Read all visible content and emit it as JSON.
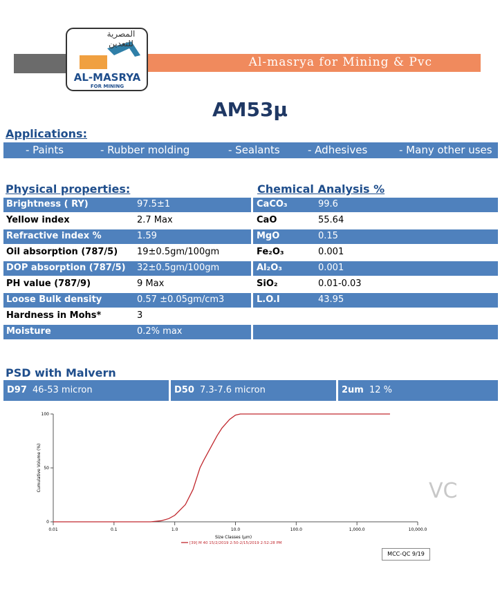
{
  "header": {
    "logo_arabic_1": "المصرية",
    "logo_arabic_2": "للتعدين",
    "logo_name": "AL-MASRYA",
    "logo_sub": "FOR MINING",
    "company": "Al-masrya for Mining & Pvc"
  },
  "title": "AM53µ",
  "applications": {
    "heading": "Applications:",
    "items": [
      "-  Paints",
      "-  Rubber molding",
      "- Sealants",
      "- Adhesives",
      "- Many other uses"
    ]
  },
  "physical": {
    "heading": "Physical properties:",
    "rows": [
      [
        "Brightness  ( RY)",
        "97.5±1"
      ],
      [
        "Yellow index",
        "2.7 Max"
      ],
      [
        "Refractive index %",
        "1.59"
      ],
      [
        "Oil absorption (787/5)",
        "19±0.5gm/100gm"
      ],
      [
        "DOP absorption (787/5)",
        "32±0.5gm/100gm"
      ],
      [
        "PH value (787/9)",
        "9 Max"
      ],
      [
        "Loose Bulk density",
        "0.57 ±0.05gm/cm3"
      ],
      [
        "Hardness in Mohs*",
        "3"
      ],
      [
        "Moisture",
        "0.2% max"
      ]
    ]
  },
  "chemical": {
    "heading": "Chemical Analysis %",
    "rows": [
      [
        "CaCO₃",
        "99.6"
      ],
      [
        "CaO",
        "55.64"
      ],
      [
        "MgO",
        "0.15"
      ],
      [
        "Fe₂O₃",
        "0.001"
      ],
      [
        "Al₂O₃",
        "0.001"
      ],
      [
        "SiO₂",
        "0.01-0.03"
      ],
      [
        "L.O.I",
        "43.95"
      ]
    ]
  },
  "psd": {
    "heading": "PSD with Malvern",
    "items": [
      {
        "label": "D97",
        "value": "46-53  micron"
      },
      {
        "label": "D50",
        "value": "7.3-7.6  micron"
      },
      {
        "label": "2um",
        "value": "12 %"
      }
    ]
  },
  "chart_data": {
    "type": "line",
    "x_scale": "log",
    "y_label": "Cumulative Volume (%)",
    "x_label": "Size Classes (µm)",
    "xlim": [
      0.01,
      10000
    ],
    "ylim": [
      0,
      100
    ],
    "xticks": [
      0.01,
      0.1,
      {
        "value": 1,
        "label": "1.0"
      },
      {
        "value": 10,
        "label": "10.0"
      },
      {
        "value": 100,
        "label": "100.0"
      },
      {
        "value": 1000,
        "label": "1,000.0"
      },
      {
        "value": 10000,
        "label": "10,000.0"
      }
    ],
    "yticks": [
      0,
      50,
      100
    ],
    "x": [
      0.01,
      0.1,
      0.4,
      0.6,
      0.8,
      1,
      1.5,
      2,
      2.6,
      3,
      4,
      5,
      6,
      8,
      10,
      12,
      15,
      100,
      1000,
      3500
    ],
    "series": [
      {
        "name": "[39] M 40 15/2/2019 2:50-2/15/2019 2:52:28 PM",
        "color": "#c0272d",
        "values": [
          0,
          0,
          0,
          1,
          3,
          6,
          16,
          30,
          50,
          57,
          70,
          80,
          87,
          95,
          99,
          100,
          100,
          100,
          100,
          100
        ]
      }
    ]
  },
  "footer": {
    "watermark": "VC",
    "code": "MCC-QC 9/19"
  }
}
